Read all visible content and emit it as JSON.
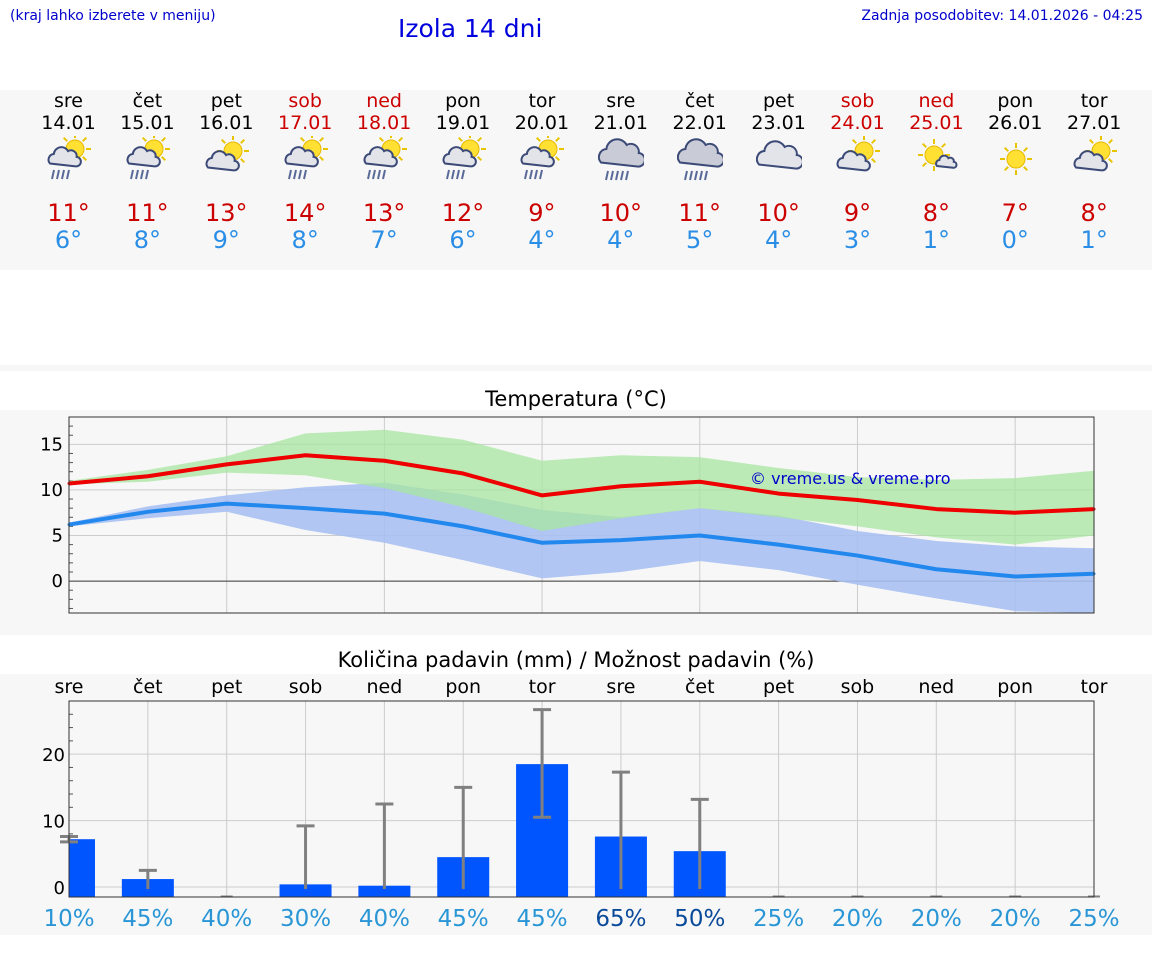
{
  "header": {
    "hint": "(kraj lahko izberete v meniju)",
    "title": "Izola 14 dni",
    "updated": "Zadnja posodobitev: 14.01.2026 - 04:25"
  },
  "days": [
    {
      "name": "sre",
      "date": "14.01",
      "weekend": false,
      "icon": "sun-cloud-rain-icon",
      "max": "11°",
      "min": "6°"
    },
    {
      "name": "čet",
      "date": "15.01",
      "weekend": false,
      "icon": "sun-cloud-rain-icon",
      "max": "11°",
      "min": "8°"
    },
    {
      "name": "pet",
      "date": "16.01",
      "weekend": false,
      "icon": "sun-cloud-icon",
      "max": "13°",
      "min": "9°"
    },
    {
      "name": "sob",
      "date": "17.01",
      "weekend": true,
      "icon": "sun-cloud-rain-icon",
      "max": "14°",
      "min": "8°"
    },
    {
      "name": "ned",
      "date": "18.01",
      "weekend": true,
      "icon": "sun-cloud-rain-icon",
      "max": "13°",
      "min": "7°"
    },
    {
      "name": "pon",
      "date": "19.01",
      "weekend": false,
      "icon": "sun-cloud-rain-icon",
      "max": "12°",
      "min": "6°"
    },
    {
      "name": "tor",
      "date": "20.01",
      "weekend": false,
      "icon": "sun-cloud-rain-icon",
      "max": "9°",
      "min": "4°"
    },
    {
      "name": "sre",
      "date": "21.01",
      "weekend": false,
      "icon": "cloud-rain-icon",
      "max": "10°",
      "min": "4°"
    },
    {
      "name": "čet",
      "date": "22.01",
      "weekend": false,
      "icon": "cloud-rain-icon",
      "max": "11°",
      "min": "5°"
    },
    {
      "name": "pet",
      "date": "23.01",
      "weekend": false,
      "icon": "cloud-icon",
      "max": "10°",
      "min": "4°"
    },
    {
      "name": "sob",
      "date": "24.01",
      "weekend": true,
      "icon": "sun-cloud-icon",
      "max": "9°",
      "min": "3°"
    },
    {
      "name": "ned",
      "date": "25.01",
      "weekend": true,
      "icon": "sun-small-cloud-icon",
      "max": "8°",
      "min": "1°"
    },
    {
      "name": "pon",
      "date": "26.01",
      "weekend": false,
      "icon": "sun-icon",
      "max": "7°",
      "min": "0°"
    },
    {
      "name": "tor",
      "date": "27.01",
      "weekend": false,
      "icon": "sun-cloud-icon",
      "max": "8°",
      "min": "1°"
    }
  ],
  "colors": {
    "max": "#ee0000",
    "min": "#2288ee",
    "max_band": "#a8e6a0",
    "min_band": "#a8c0f2",
    "bar": "#0055ff",
    "whisker": "#808080"
  },
  "chart_data": [
    {
      "type": "line",
      "title": "Temperatura (°C)",
      "watermark": "© vreme.us & vreme.pro",
      "x": [
        0,
        1,
        2,
        3,
        4,
        5,
        6,
        7,
        8,
        9,
        10,
        11,
        12,
        13
      ],
      "ylim": [
        -3.5,
        18
      ],
      "yticks": [
        0,
        5,
        10,
        15
      ],
      "series": [
        {
          "name": "max",
          "values": [
            10.7,
            11.5,
            12.8,
            13.8,
            13.2,
            11.8,
            9.4,
            10.4,
            10.9,
            9.6,
            8.9,
            7.9,
            7.5,
            7.9
          ]
        },
        {
          "name": "min",
          "values": [
            6.2,
            7.6,
            8.5,
            8.0,
            7.4,
            6.0,
            4.2,
            4.5,
            5.0,
            4.0,
            2.8,
            1.3,
            0.5,
            0.8
          ]
        }
      ],
      "bands": [
        {
          "name": "max_range",
          "low": [
            10.6,
            10.9,
            11.9,
            11.6,
            10.2,
            8.1,
            5.5,
            6.9,
            8.0,
            7.0,
            6.0,
            4.8,
            4.0,
            5.0
          ],
          "high": [
            11.0,
            12.2,
            13.7,
            16.2,
            16.6,
            15.5,
            13.2,
            13.8,
            13.6,
            12.4,
            11.4,
            11.1,
            11.3,
            12.1
          ]
        },
        {
          "name": "min_range",
          "low": [
            6.0,
            6.9,
            7.6,
            5.6,
            4.2,
            2.3,
            0.3,
            1.0,
            2.2,
            1.2,
            -0.4,
            -1.9,
            -3.3,
            -3.5
          ],
          "high": [
            6.4,
            8.2,
            9.4,
            10.3,
            10.8,
            9.5,
            7.8,
            7.0,
            8.0,
            7.2,
            5.5,
            4.4,
            3.8,
            3.6
          ]
        }
      ]
    },
    {
      "type": "bar",
      "title": "Količina padavin (mm) / Možnost padavin (%)",
      "categories": [
        "sre",
        "čet",
        "pet",
        "sob",
        "ned",
        "pon",
        "tor",
        "sre",
        "čet",
        "pet",
        "sob",
        "ned",
        "pon",
        "tor"
      ],
      "ylim": [
        -1.5,
        28
      ],
      "yticks": [
        0,
        10,
        20
      ],
      "values": [
        7.2,
        1.2,
        0,
        0.4,
        0.2,
        4.5,
        18.5,
        7.6,
        5.4,
        0,
        0,
        0,
        0,
        0
      ],
      "err_low": [
        6.8,
        0,
        0,
        0,
        0,
        0,
        10.5,
        0,
        0,
        0,
        0,
        0,
        0,
        0
      ],
      "err_high": [
        7.6,
        2.5,
        0,
        9.2,
        12.5,
        15.0,
        26.7,
        17.3,
        13.2,
        0,
        0,
        0,
        0,
        0
      ],
      "chance": [
        "10%",
        "45%",
        "40%",
        "30%",
        "40%",
        "45%",
        "45%",
        "65%",
        "50%",
        "25%",
        "20%",
        "20%",
        "20%",
        "25%"
      ],
      "chance_strong": [
        false,
        false,
        false,
        false,
        false,
        false,
        false,
        true,
        true,
        false,
        false,
        false,
        false,
        false
      ]
    }
  ]
}
